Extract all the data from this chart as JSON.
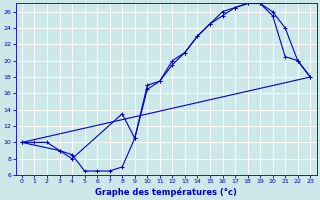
{
  "xlabel": "Graphe des températures (°c)",
  "bg_color": "#cce8e8",
  "line_color": "#0000cc",
  "grid_color": "#aadddd",
  "xlim": [
    -0.5,
    23.5
  ],
  "ylim": [
    6,
    27
  ],
  "xticks": [
    0,
    1,
    2,
    3,
    4,
    5,
    6,
    7,
    8,
    9,
    10,
    11,
    12,
    13,
    14,
    15,
    16,
    17,
    18,
    19,
    20,
    21,
    22,
    23
  ],
  "yticks": [
    6,
    8,
    10,
    12,
    14,
    16,
    18,
    20,
    22,
    24,
    26
  ],
  "line1_x": [
    0,
    1,
    2,
    3,
    4,
    5,
    6,
    7,
    8,
    9,
    10,
    11,
    12,
    13,
    14,
    15,
    16,
    17,
    18,
    19,
    20,
    21,
    22,
    23
  ],
  "line1_y": [
    10,
    10,
    10,
    9,
    8.5,
    6.5,
    6.5,
    6.5,
    7.0,
    10.5,
    16.5,
    17.5,
    20,
    21,
    23,
    24.5,
    26,
    26.5,
    27,
    27,
    26,
    24,
    20,
    18
  ],
  "line2_x": [
    0,
    3,
    4,
    8,
    9,
    10,
    11,
    12,
    13,
    14,
    15,
    16,
    17,
    18,
    19,
    20,
    21,
    22,
    23
  ],
  "line2_y": [
    10,
    9,
    8,
    13.5,
    10.5,
    17,
    17.5,
    19.5,
    21,
    23,
    24.5,
    25.5,
    26.5,
    27,
    27,
    25.5,
    20.5,
    20,
    18
  ],
  "line3_x": [
    0,
    23
  ],
  "line3_y": [
    10,
    18
  ]
}
